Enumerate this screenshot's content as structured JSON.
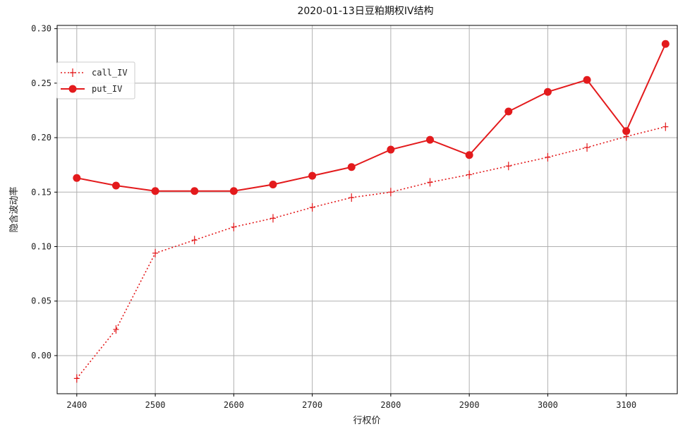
{
  "chart_data": {
    "type": "line",
    "title": "2020-01-13日豆粕期权IV结构",
    "xlabel": "行权价",
    "ylabel": "隐含波动率",
    "xlim": [
      2375,
      3165
    ],
    "ylim": [
      -0.035,
      0.303
    ],
    "xticks": [
      "2400",
      "2500",
      "2600",
      "2700",
      "2800",
      "2900",
      "3000",
      "3100"
    ],
    "yticks": [
      "0.00",
      "0.05",
      "0.10",
      "0.15",
      "0.20",
      "0.25",
      "0.30"
    ],
    "grid": true,
    "legend_position": "upper-left",
    "series": [
      {
        "name": "call_IV",
        "style": "dotted",
        "marker": "plus",
        "color": "#e31a1c",
        "x": [
          2400,
          2450,
          2500,
          2550,
          2600,
          2650,
          2700,
          2750,
          2800,
          2850,
          2900,
          2950,
          3000,
          3050,
          3100,
          3150
        ],
        "y": [
          -0.021,
          0.024,
          0.094,
          0.106,
          0.118,
          0.126,
          0.136,
          0.145,
          0.15,
          0.159,
          0.166,
          0.174,
          0.182,
          0.191,
          0.201,
          0.21
        ]
      },
      {
        "name": "put_IV",
        "style": "solid",
        "marker": "circle",
        "color": "#e31a1c",
        "x": [
          2400,
          2450,
          2500,
          2550,
          2600,
          2650,
          2700,
          2750,
          2800,
          2850,
          2900,
          2950,
          3000,
          3050,
          3100,
          3150
        ],
        "y": [
          0.163,
          0.156,
          0.151,
          0.151,
          0.151,
          0.157,
          0.165,
          0.173,
          0.189,
          0.198,
          0.184,
          0.224,
          0.242,
          0.253,
          0.206,
          0.286
        ]
      }
    ]
  }
}
